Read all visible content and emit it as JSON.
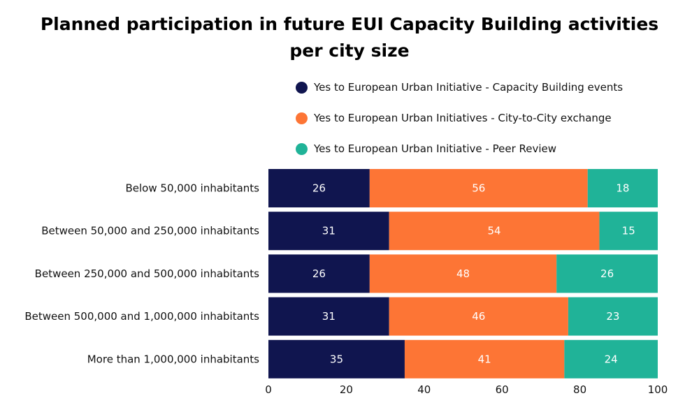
{
  "chart_data": {
    "type": "bar",
    "orientation": "horizontal",
    "stacked": true,
    "title_lines": [
      "Planned participation in future EUI Capacity Building activities",
      "per city size"
    ],
    "categories": [
      "Below 50,000 inhabitants",
      "Between 50,000 and 250,000 inhabitants",
      "Between 250,000 and 500,000 inhabitants",
      "Between 500,000 and 1,000,000 inhabitants",
      "More than 1,000,000 inhabitants"
    ],
    "series": [
      {
        "name": "Yes to European Urban Initiative - Capacity Building events",
        "color": "#10154f",
        "values": [
          26,
          31,
          26,
          31,
          35
        ]
      },
      {
        "name": "Yes to European Urban Initiatives - City-to-City exchange",
        "color": "#fd7535",
        "values": [
          56,
          54,
          48,
          46,
          41
        ]
      },
      {
        "name": "Yes to European Urban Initiative - Peer Review",
        "color": "#20b398",
        "values": [
          18,
          15,
          26,
          23,
          24
        ]
      }
    ],
    "xlim": [
      0,
      100
    ],
    "xticks": [
      0,
      20,
      40,
      60,
      80,
      100
    ],
    "xlabel": "",
    "ylabel": "",
    "legend_position": "top",
    "label_color": "#ffffff"
  }
}
